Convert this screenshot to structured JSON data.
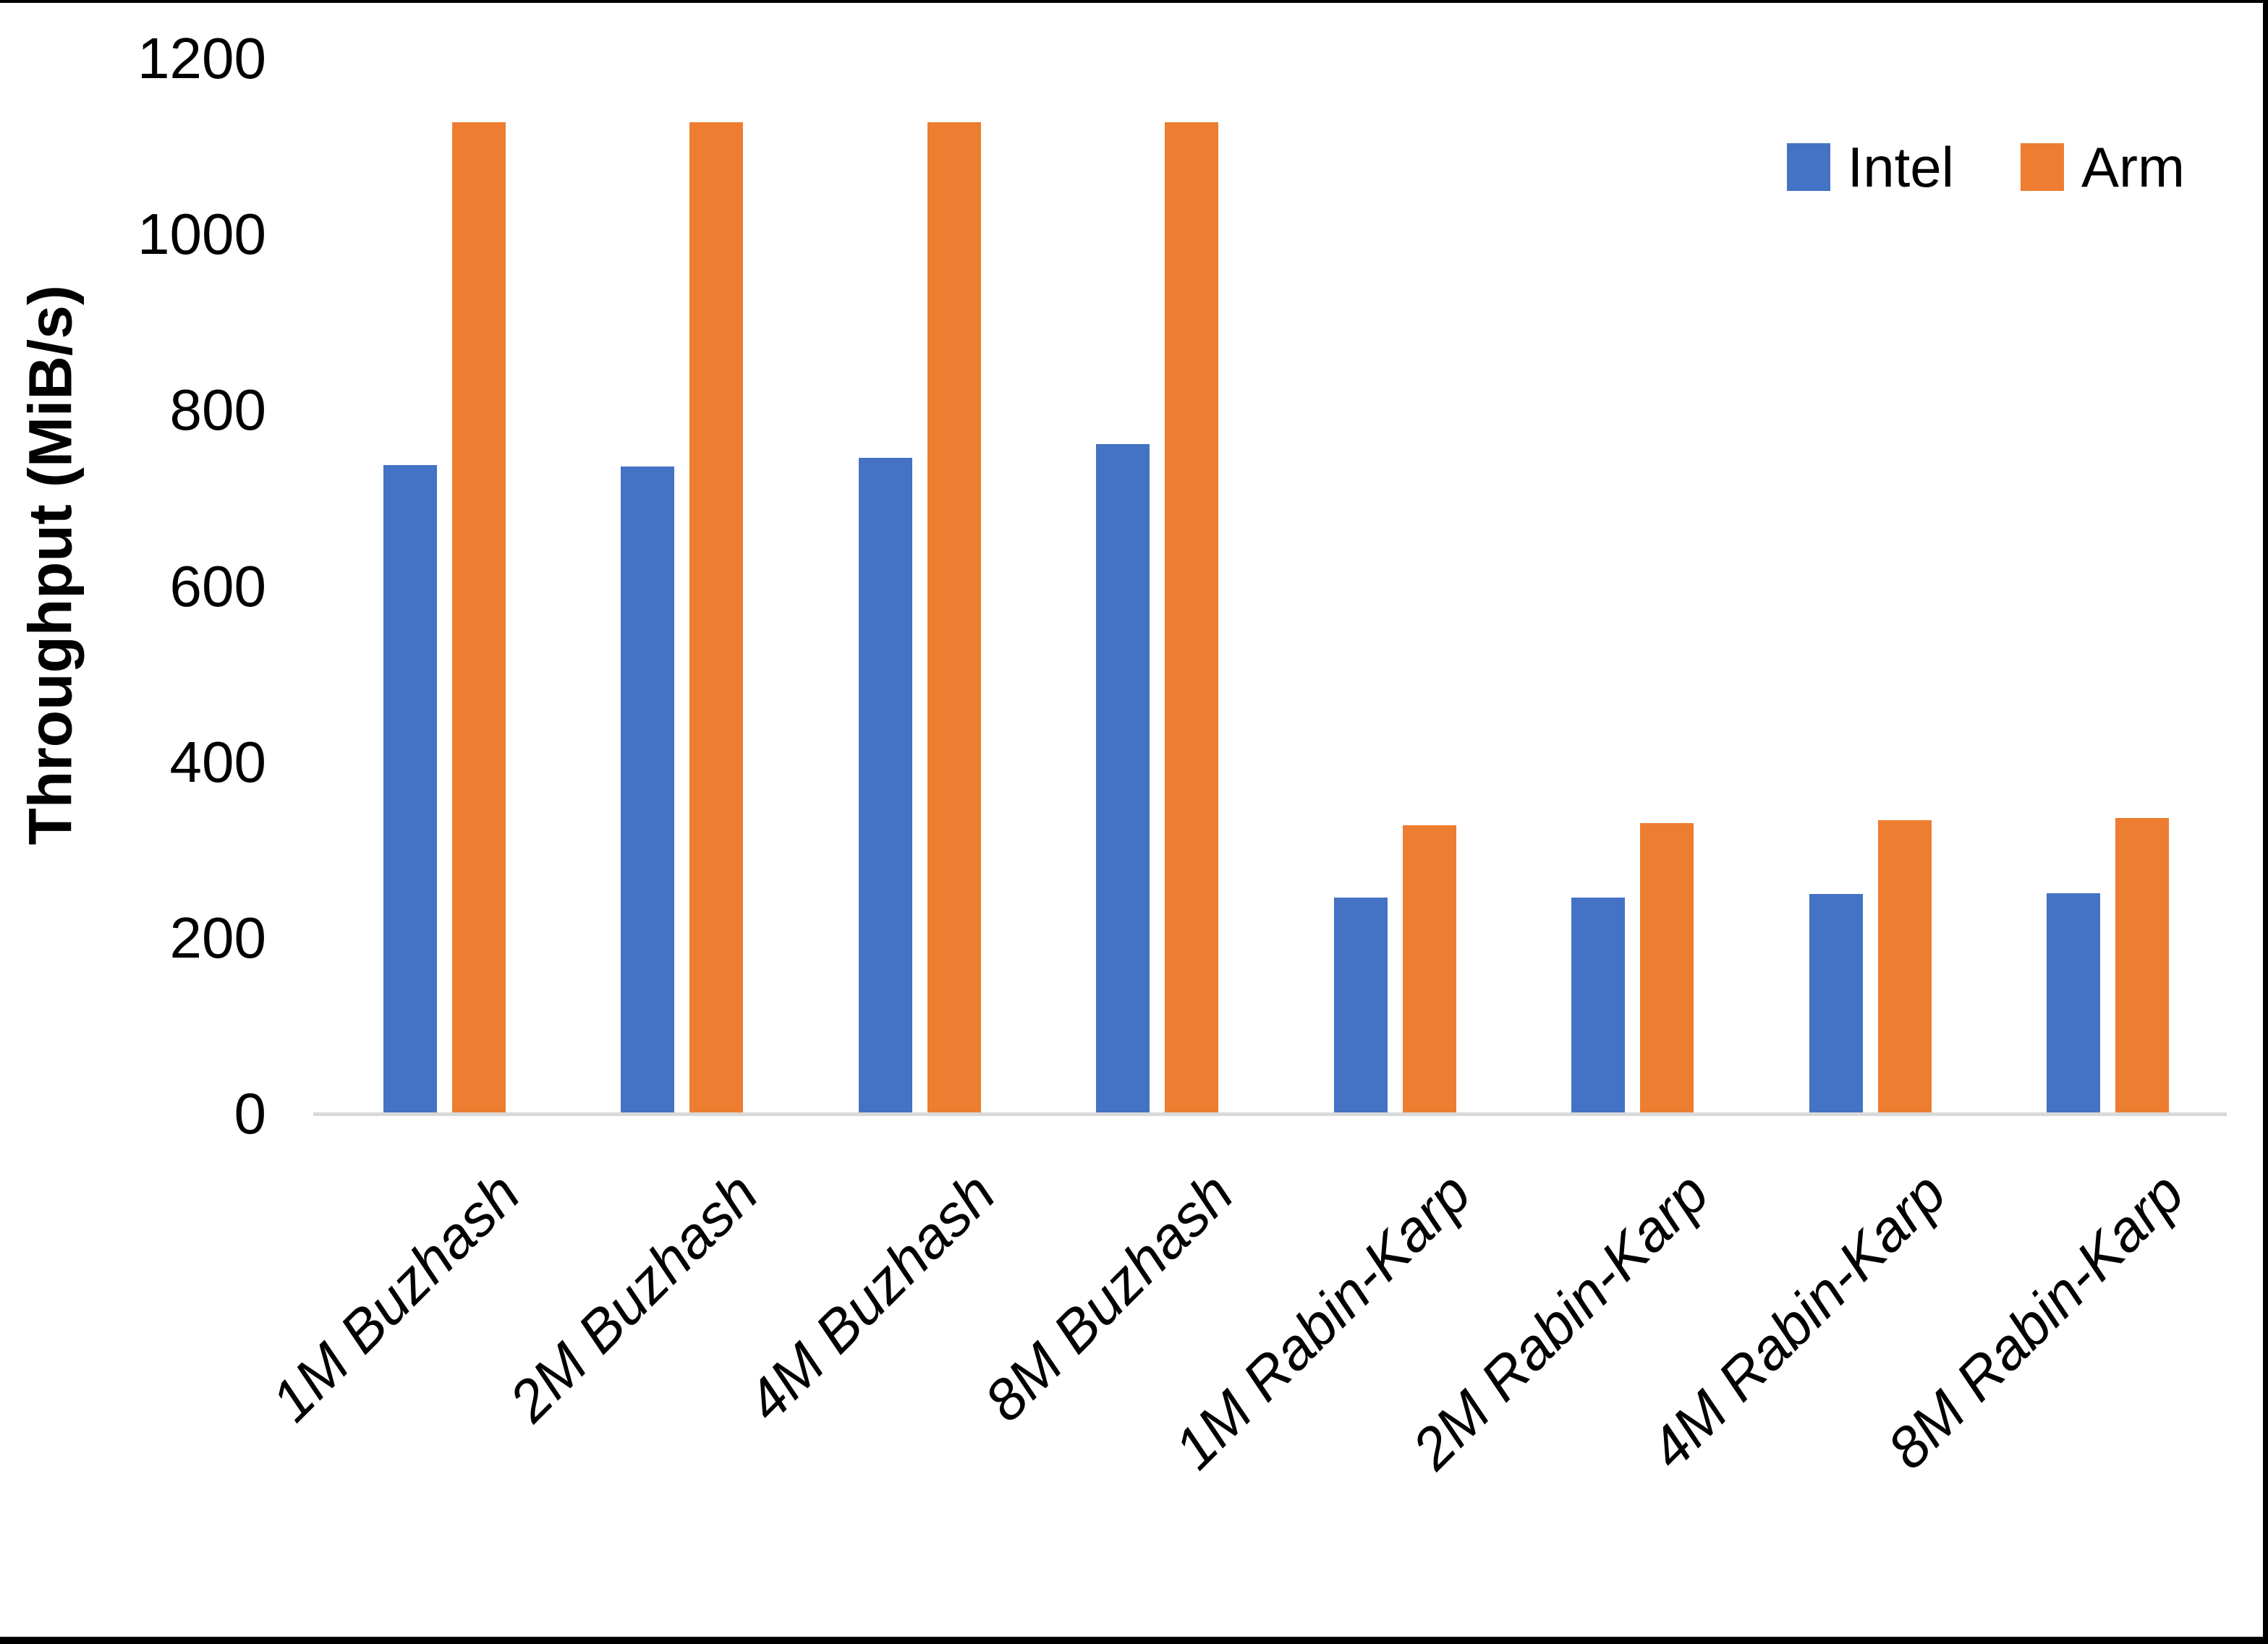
{
  "chart_data": {
    "type": "bar",
    "title": "",
    "xlabel": "",
    "ylabel": "Throughput (MiB/s)",
    "ylim": [
      0,
      1200
    ],
    "yticks": [
      0,
      200,
      400,
      600,
      800,
      1000,
      1200
    ],
    "grid": false,
    "legend_position": "top-right",
    "categories": [
      "1M Buzhash",
      "2M Buzhash",
      "4M Buzhash",
      "8M Buzhash",
      "1M Rabin-Karp",
      "2M Rabin-Karp",
      "4M Rabin-Karp",
      "8M Rabin-Karp"
    ],
    "series": [
      {
        "name": "Intel",
        "color": "#4472c4",
        "values": [
          738,
          736,
          746,
          762,
          246,
          246,
          250,
          251
        ]
      },
      {
        "name": "Arm",
        "color": "#ed7d31",
        "values": [
          1128,
          1128,
          1128,
          1128,
          328,
          331,
          334,
          336
        ]
      }
    ]
  },
  "axis": {
    "line_color": "#d9d9d9"
  },
  "figure": {
    "background": "#ffffff",
    "border_color": "#000000"
  }
}
